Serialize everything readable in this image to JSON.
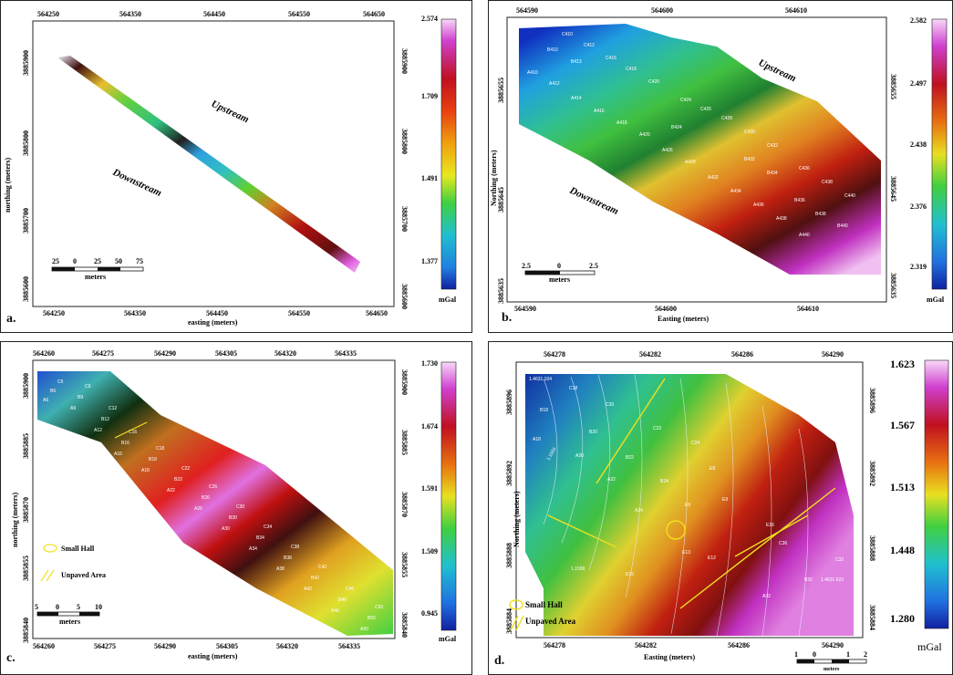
{
  "panels": [
    {
      "id": "a",
      "letter": "a.",
      "top_ticks": [
        "564250",
        "564350",
        "564450",
        "564550",
        "564650"
      ],
      "bottom_ticks": [
        "564250",
        "564350",
        "564450",
        "564550",
        "564650"
      ],
      "left_ticks": [
        "3885900",
        "3885800",
        "3885700",
        "3885600"
      ],
      "right_ticks": [
        "3885900",
        "3885800",
        "3885700",
        "3885600"
      ],
      "xlabel": "easting (meters)",
      "ylabel": "northing (meters)",
      "upstream": "Upstream",
      "downstream": "Downstream",
      "scale_ticks": [
        "25",
        "0",
        "25",
        "50",
        "75"
      ],
      "scale_unit": "meters",
      "colorbar_ticks": [
        "2.574",
        "1.709",
        "1.491",
        "1.377"
      ],
      "colorbar_unit": "mGal"
    },
    {
      "id": "b",
      "letter": "b.",
      "top_ticks": [
        "564590",
        "564600",
        "564610"
      ],
      "bottom_ticks": [
        "564590",
        "564600",
        "564610"
      ],
      "left_ticks": [
        "3885655",
        "3885645",
        "3885635"
      ],
      "right_ticks": [
        "3885655",
        "3885645",
        "3885635"
      ],
      "xlabel": "Easting (meters)",
      "ylabel": "Northing (meters)",
      "upstream": "Upstream",
      "downstream": "Downstream",
      "scale_ticks": [
        "2.5",
        "0",
        "2.5"
      ],
      "scale_unit": "meters",
      "colorbar_ticks": [
        "2.582",
        "2.497",
        "2.438",
        "2.376",
        "2.319"
      ],
      "colorbar_unit": "mGal",
      "points": [
        "C410",
        "C412",
        "B410",
        "B413",
        "A410",
        "A412",
        "C416",
        "C418",
        "C420",
        "A414",
        "A416",
        "A418",
        "A420",
        "C424",
        "C426",
        "C428",
        "B424",
        "A426",
        "A428",
        "C430",
        "C432",
        "B432",
        "B434",
        "C436",
        "C438",
        "C440",
        "B436",
        "B438",
        "B440",
        "A432",
        "A434",
        "A436",
        "A438",
        "A440"
      ]
    },
    {
      "id": "c",
      "letter": "c.",
      "top_ticks": [
        "564260",
        "564275",
        "564290",
        "564305",
        "564320",
        "564335"
      ],
      "bottom_ticks": [
        "564260",
        "564275",
        "564290",
        "564305",
        "564320",
        "564335"
      ],
      "left_ticks": [
        "3885900",
        "3885885",
        "3885870",
        "3885855",
        "3885840"
      ],
      "right_ticks": [
        "3885900",
        "3885885",
        "3885870",
        "3885855",
        "3885840"
      ],
      "xlabel": "easting (meters)",
      "ylabel": "northing (meters)",
      "scale_ticks": [
        "5",
        "0",
        "5",
        "10"
      ],
      "scale_unit": "meters",
      "legend_hall": "Small Hall",
      "legend_unpaved": "Unpaved Area",
      "colorbar_ticks": [
        "1.730",
        "1.674",
        "1.591",
        "1.509",
        "0.945"
      ],
      "colorbar_unit": "mGal",
      "points": [
        "C6",
        "B6",
        "A6",
        "C9",
        "B9",
        "A9",
        "C12",
        "B12",
        "A12",
        "C16",
        "B16",
        "A16",
        "C18",
        "B18",
        "A18",
        "C22",
        "B22",
        "A22",
        "C26",
        "B26",
        "A26",
        "C30",
        "B30",
        "A30",
        "C34",
        "B34",
        "A34",
        "C38",
        "B38",
        "A38",
        "C42",
        "B42",
        "A42",
        "C46",
        "B46",
        "A46",
        "C50",
        "B50",
        "A50"
      ]
    },
    {
      "id": "d",
      "letter": "d.",
      "top_ticks": [
        "564278",
        "564282",
        "564286",
        "564290"
      ],
      "bottom_ticks": [
        "564278",
        "564282",
        "564286",
        "564290"
      ],
      "left_ticks": [
        "3885896",
        "3885892",
        "3885888",
        "3885884"
      ],
      "right_ticks": [
        "3885896",
        "3885892",
        "3885888",
        "3885884"
      ],
      "xlabel": "Easting (meters)",
      "ylabel": "Northing (meters)",
      "scale_ticks": [
        "1",
        "0",
        "1",
        "2"
      ],
      "scale_unit": "meters",
      "legend_hall": "Small Hall",
      "legend_unpaved": "Unpaved Area",
      "colorbar_ticks": [
        "1.623",
        "1.567",
        "1.513",
        "1.448",
        "1.280"
      ],
      "colorbar_unit": "mGal",
      "contour_labels": [
        "1.4631 104",
        "1.4631 623",
        "1.1593",
        "1.1599"
      ],
      "points": [
        "C18",
        "B18",
        "A18",
        "C20",
        "B20",
        "A20",
        "C22",
        "B22",
        "A22",
        "C24",
        "B24",
        "A24",
        "E6",
        "E8",
        "E9",
        "E15",
        "E13",
        "E12",
        "E16",
        "C32",
        "B32",
        "A32",
        "C36"
      ]
    }
  ]
}
